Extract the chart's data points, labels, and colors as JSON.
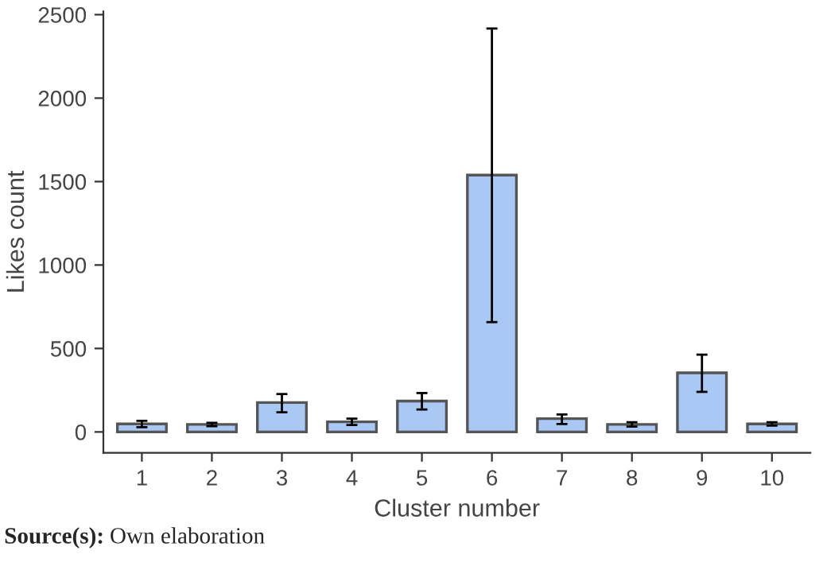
{
  "chart_data": {
    "type": "bar",
    "categories": [
      "1",
      "2",
      "3",
      "4",
      "5",
      "6",
      "7",
      "8",
      "9",
      "10"
    ],
    "values": [
      48,
      45,
      176,
      61,
      185,
      1539,
      80,
      45,
      354,
      48
    ],
    "errors": [
      [
        29,
        67
      ],
      [
        35,
        55
      ],
      [
        118,
        227
      ],
      [
        42,
        80
      ],
      [
        134,
        233
      ],
      [
        658,
        2417
      ],
      [
        48,
        105
      ],
      [
        32,
        58
      ],
      [
        240,
        463
      ],
      [
        38,
        58
      ]
    ],
    "color": "#a9c8f3",
    "xlabel": "Cluster number",
    "ylabel": "Likes count",
    "ylim": [
      -125,
      2520
    ],
    "yticks": [
      0,
      500,
      1000,
      1500,
      2000,
      2500
    ],
    "grid": false,
    "annotations": [
      "$^{}$**Source(s):** Own elaboration"
    ]
  }
}
